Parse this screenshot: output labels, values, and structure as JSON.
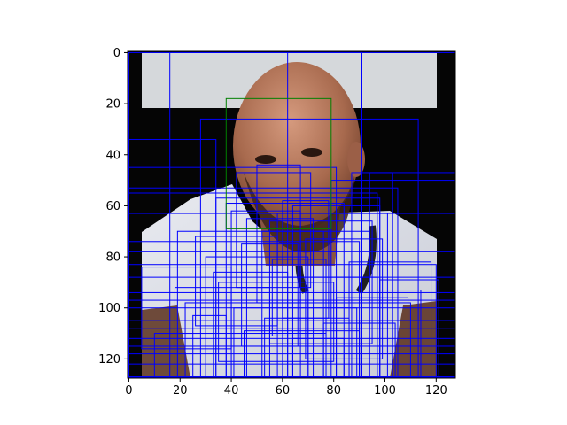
{
  "figure": {
    "image_description": "Low-resolution photo of a bald man with a beard wearing a light-grey t-shirt with dark lanyard, in front of a black backdrop with a pale grey panel at top, overlaid with rectangles",
    "x_ticks": [
      "0",
      "20",
      "40",
      "60",
      "80",
      "100",
      "120"
    ],
    "y_ticks": [
      "0",
      "20",
      "40",
      "60",
      "80",
      "100",
      "120"
    ],
    "colors": {
      "detection_box": "#0000ff",
      "face_box": "#008000",
      "axis": "#000000"
    }
  },
  "chart_data": {
    "type": "image",
    "title": "",
    "xlabel": "",
    "ylabel": "",
    "xlim": [
      -0.5,
      127.5
    ],
    "ylim": [
      127.5,
      -0.5
    ],
    "grid": false,
    "legend": "none",
    "face_box": [
      38,
      18,
      79,
      69
    ],
    "boxes": [
      [
        16,
        0,
        91,
        127
      ],
      [
        62,
        0,
        91,
        127
      ],
      [
        0,
        0,
        128,
        127
      ],
      [
        28,
        26,
        113,
        127
      ],
      [
        0,
        34,
        34,
        127
      ],
      [
        0,
        45,
        81,
        127
      ],
      [
        0,
        53,
        105,
        127
      ],
      [
        0,
        55,
        97,
        127
      ],
      [
        0,
        63,
        128,
        127
      ],
      [
        87,
        47,
        103,
        127
      ],
      [
        94,
        47,
        128,
        127
      ],
      [
        79,
        50,
        128,
        127
      ],
      [
        34,
        57,
        98,
        127
      ],
      [
        38,
        59,
        84,
        127
      ],
      [
        64,
        60,
        98,
        127
      ],
      [
        19,
        70,
        76,
        127
      ],
      [
        40,
        62,
        67,
        127
      ],
      [
        46,
        65,
        72,
        127
      ],
      [
        52,
        70,
        94,
        127
      ],
      [
        58,
        63,
        101,
        127
      ],
      [
        0,
        74,
        90,
        127
      ],
      [
        0,
        78,
        128,
        127
      ],
      [
        0,
        83,
        120,
        127
      ],
      [
        0,
        88,
        128,
        127
      ],
      [
        0,
        94,
        128,
        127
      ],
      [
        0,
        97,
        128,
        127
      ],
      [
        0,
        100,
        128,
        127
      ],
      [
        0,
        105,
        128,
        127
      ],
      [
        0,
        108,
        128,
        127
      ],
      [
        0,
        112,
        128,
        127
      ],
      [
        0,
        115,
        128,
        127
      ],
      [
        0,
        118,
        128,
        127
      ],
      [
        0,
        122,
        128,
        127
      ],
      [
        30,
        80,
        70,
        127
      ],
      [
        33,
        86,
        62,
        127
      ],
      [
        18,
        92,
        55,
        127
      ],
      [
        22,
        98,
        110,
        127
      ],
      [
        41,
        100,
        89,
        127
      ],
      [
        53,
        104,
        86,
        127
      ],
      [
        60,
        88,
        97,
        127
      ],
      [
        70,
        93,
        114,
        127
      ],
      [
        81,
        96,
        109,
        127
      ],
      [
        86,
        82,
        118,
        127
      ],
      [
        98,
        89,
        121,
        127
      ],
      [
        90,
        105,
        128,
        127
      ],
      [
        10,
        110,
        77,
        127
      ],
      [
        25,
        103,
        38,
        127
      ],
      [
        45,
        109,
        90,
        127
      ],
      [
        64,
        112,
        84,
        127
      ],
      [
        76,
        106,
        104,
        127
      ],
      [
        5,
        84,
        40,
        116
      ],
      [
        35,
        90,
        80,
        121
      ],
      [
        55,
        66,
        95,
        114
      ],
      [
        69,
        73,
        99,
        120
      ],
      [
        44,
        75,
        66,
        115
      ],
      [
        26,
        72,
        58,
        107
      ],
      [
        56,
        81,
        77,
        111
      ],
      [
        60,
        58,
        78,
        104
      ],
      [
        50,
        44,
        67,
        98
      ],
      [
        42,
        47,
        71,
        92
      ]
    ]
  }
}
